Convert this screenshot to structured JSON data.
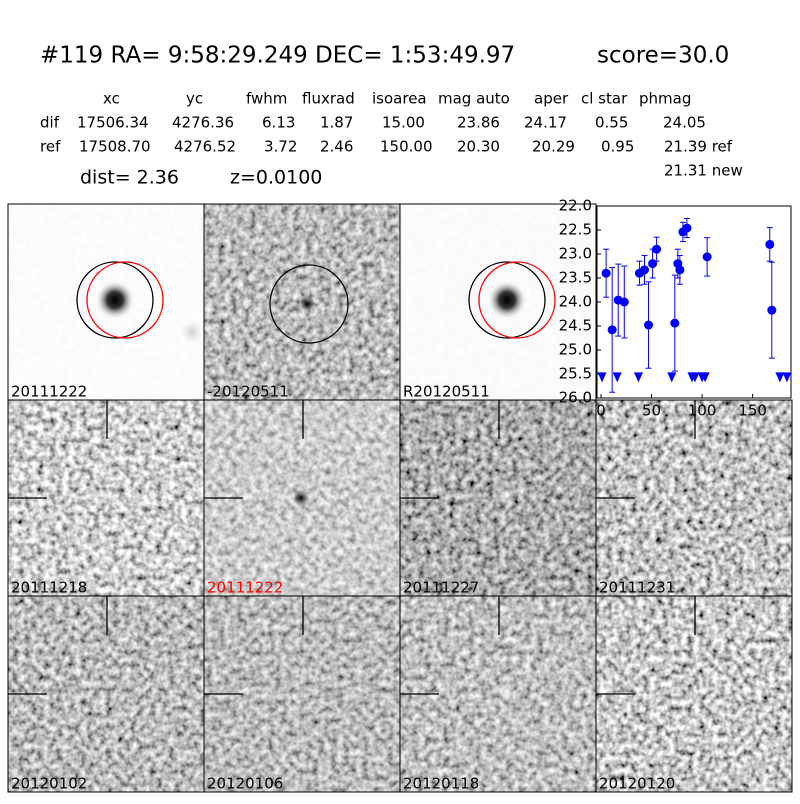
{
  "header": {
    "title": "#119   RA= 9:58:29.249 DEC= 1:53:49.97",
    "score": "score=30.0"
  },
  "table": {
    "columns": [
      "xc",
      "yc",
      "fwhm",
      "fluxrad",
      "isoarea",
      "mag auto",
      "aper",
      "cl star",
      "phmag"
    ],
    "rows": [
      [
        "dif",
        "17506.34",
        "4276.36",
        "6.13",
        "1.87",
        "15.00",
        "23.86",
        "24.17",
        "0.55",
        "24.05"
      ],
      [
        "ref",
        "17508.70",
        "4276.52",
        "3.72",
        "2.46",
        "150.00",
        "20.30",
        "20.29",
        "0.95",
        "21.39 ref"
      ]
    ],
    "phmag_new": "21.31 new"
  },
  "dist": "dist=  2.36",
  "redshift": "z=0.0100",
  "stamps": [
    {
      "label": "20111222"
    },
    {
      "label": "-20120511"
    },
    {
      "label": "R20120511"
    },
    {
      "label": "20111218"
    },
    {
      "label": "20111222",
      "label_color": "#ff0000"
    },
    {
      "label": "20111227"
    },
    {
      "label": "20111231"
    },
    {
      "label": "20120102"
    },
    {
      "label": "20120106"
    },
    {
      "label": "20120118"
    },
    {
      "label": "20120120"
    }
  ],
  "chart_data": {
    "type": "errorbar",
    "color": "#0000ff",
    "x": [
      5,
      11,
      17,
      23,
      38,
      43,
      47,
      51,
      55,
      73,
      76,
      78,
      81,
      85,
      105,
      167,
      169
    ],
    "values": [
      23.4,
      24.58,
      23.96,
      24.0,
      23.4,
      23.33,
      24.48,
      23.2,
      22.9,
      24.44,
      23.2,
      23.33,
      22.54,
      22.46,
      23.06,
      22.8,
      24.17
    ],
    "errors": [
      0.5,
      1.3,
      0.75,
      0.75,
      0.25,
      0.3,
      0.9,
      0.3,
      0.25,
      1.0,
      0.3,
      0.3,
      0.2,
      0.2,
      0.4,
      0.35,
      1.0
    ],
    "limit_x": [
      1,
      16,
      37,
      70,
      90,
      93,
      100,
      103,
      177,
      184
    ],
    "limit_values": [
      25.55,
      25.55,
      25.55,
      25.55,
      25.55,
      25.55,
      25.55,
      25.55,
      25.55,
      25.55
    ],
    "xlim": [
      -4,
      188
    ],
    "xticks": [
      0,
      50,
      100,
      150
    ],
    "ylim": [
      26,
      22
    ],
    "yticks": [
      {
        "value": 22,
        "label": "22.0"
      },
      {
        "value": 22.5,
        "label": "22.5"
      },
      {
        "value": 23,
        "label": "23.0"
      },
      {
        "value": 23.5,
        "label": "23.5"
      },
      {
        "value": 24,
        "label": "24.0"
      },
      {
        "value": 24.5,
        "label": "24.5"
      },
      {
        "value": 25,
        "label": "25.0"
      },
      {
        "value": 25.5,
        "label": "25.5"
      },
      {
        "value": 26,
        "label": "26.0"
      }
    ]
  }
}
